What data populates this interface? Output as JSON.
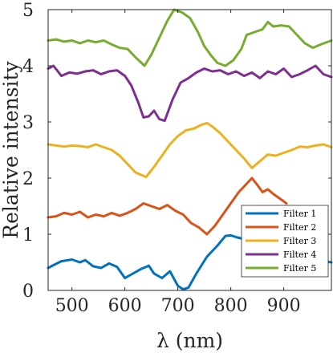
{
  "chart_data": {
    "type": "line",
    "title": "",
    "xlabel": "λ (nm)",
    "ylabel": "Relative intensity",
    "xlim": [
      455,
      990
    ],
    "ylim": [
      0,
      5
    ],
    "xticks": [
      500,
      600,
      700,
      800,
      900
    ],
    "yticks": [
      0,
      1,
      2,
      3,
      4,
      5
    ],
    "grid": false,
    "legend_position": "bottom-right",
    "series": [
      {
        "name": "Filter 1",
        "color": "#0072BD",
        "x": [
          455,
          465,
          480,
          500,
          515,
          525,
          540,
          555,
          570,
          585,
          600,
          615,
          630,
          645,
          655,
          670,
          685,
          700,
          710,
          720,
          735,
          755,
          775,
          790,
          800,
          810,
          830,
          845,
          860,
          880,
          900,
          920,
          940,
          960,
          975,
          990
        ],
        "y": [
          0.4,
          0.45,
          0.52,
          0.55,
          0.5,
          0.54,
          0.43,
          0.4,
          0.48,
          0.42,
          0.22,
          0.3,
          0.38,
          0.44,
          0.3,
          0.22,
          0.34,
          0.08,
          0.02,
          0.05,
          0.3,
          0.6,
          0.8,
          0.97,
          0.98,
          0.95,
          0.9,
          0.88,
          0.82,
          0.72,
          0.66,
          0.63,
          0.6,
          0.55,
          0.52,
          0.5
        ]
      },
      {
        "name": "Filter 2",
        "color": "#D95319",
        "x": [
          455,
          470,
          485,
          500,
          515,
          530,
          545,
          560,
          575,
          590,
          605,
          620,
          635,
          650,
          665,
          680,
          695,
          710,
          725,
          740,
          755,
          770,
          785,
          800,
          815,
          830,
          840,
          850,
          860,
          870,
          880,
          895,
          905
        ],
        "y": [
          1.3,
          1.32,
          1.38,
          1.35,
          1.4,
          1.3,
          1.35,
          1.32,
          1.38,
          1.33,
          1.38,
          1.45,
          1.55,
          1.5,
          1.45,
          1.52,
          1.42,
          1.35,
          1.2,
          1.12,
          1.0,
          1.15,
          1.35,
          1.55,
          1.75,
          1.9,
          2.0,
          1.88,
          1.75,
          1.8,
          1.72,
          1.62,
          1.55
        ]
      },
      {
        "name": "Filter 3",
        "color": "#EDB120",
        "x": [
          455,
          470,
          485,
          500,
          515,
          530,
          545,
          560,
          575,
          590,
          605,
          620,
          640,
          655,
          670,
          685,
          700,
          715,
          730,
          745,
          755,
          765,
          780,
          795,
          810,
          825,
          840,
          855,
          870,
          885,
          900,
          915,
          930,
          945,
          960,
          975,
          990
        ],
        "y": [
          2.6,
          2.58,
          2.56,
          2.58,
          2.57,
          2.55,
          2.6,
          2.55,
          2.5,
          2.4,
          2.25,
          2.1,
          2.02,
          2.2,
          2.4,
          2.6,
          2.75,
          2.85,
          2.88,
          2.95,
          2.98,
          2.92,
          2.8,
          2.65,
          2.5,
          2.35,
          2.18,
          2.3,
          2.42,
          2.4,
          2.45,
          2.5,
          2.56,
          2.55,
          2.58,
          2.6,
          2.55
        ]
      },
      {
        "name": "Filter 4",
        "color": "#7E2F8E",
        "x": [
          455,
          465,
          480,
          495,
          510,
          525,
          540,
          555,
          570,
          585,
          600,
          612,
          625,
          635,
          645,
          655,
          665,
          675,
          690,
          705,
          720,
          735,
          750,
          765,
          780,
          795,
          810,
          825,
          840,
          855,
          870,
          885,
          900,
          915,
          930,
          945,
          960,
          975,
          990
        ],
        "y": [
          3.95,
          4.0,
          3.82,
          3.88,
          3.86,
          3.9,
          3.92,
          3.85,
          3.9,
          3.92,
          3.82,
          3.65,
          3.35,
          3.08,
          3.1,
          3.2,
          3.05,
          3.02,
          3.4,
          3.7,
          3.78,
          3.88,
          3.95,
          3.9,
          3.92,
          3.85,
          3.9,
          3.82,
          3.88,
          3.78,
          3.9,
          3.85,
          3.95,
          3.8,
          3.85,
          3.92,
          4.0,
          3.85,
          3.8
        ]
      },
      {
        "name": "Filter 5",
        "color": "#77AC30",
        "x": [
          455,
          470,
          485,
          500,
          515,
          530,
          545,
          560,
          575,
          590,
          605,
          620,
          637,
          650,
          665,
          680,
          693,
          708,
          723,
          738,
          750,
          763,
          775,
          790,
          805,
          820,
          830,
          845,
          860,
          870,
          880,
          895,
          910,
          925,
          940,
          955,
          970,
          990
        ],
        "y": [
          4.45,
          4.47,
          4.43,
          4.45,
          4.4,
          4.45,
          4.42,
          4.45,
          4.38,
          4.32,
          4.3,
          4.15,
          4.0,
          4.2,
          4.5,
          4.8,
          5.0,
          4.95,
          4.85,
          4.6,
          4.35,
          4.18,
          4.05,
          4.0,
          4.1,
          4.3,
          4.55,
          4.6,
          4.65,
          4.78,
          4.7,
          4.72,
          4.7,
          4.55,
          4.4,
          4.32,
          4.38,
          4.45
        ]
      }
    ]
  }
}
